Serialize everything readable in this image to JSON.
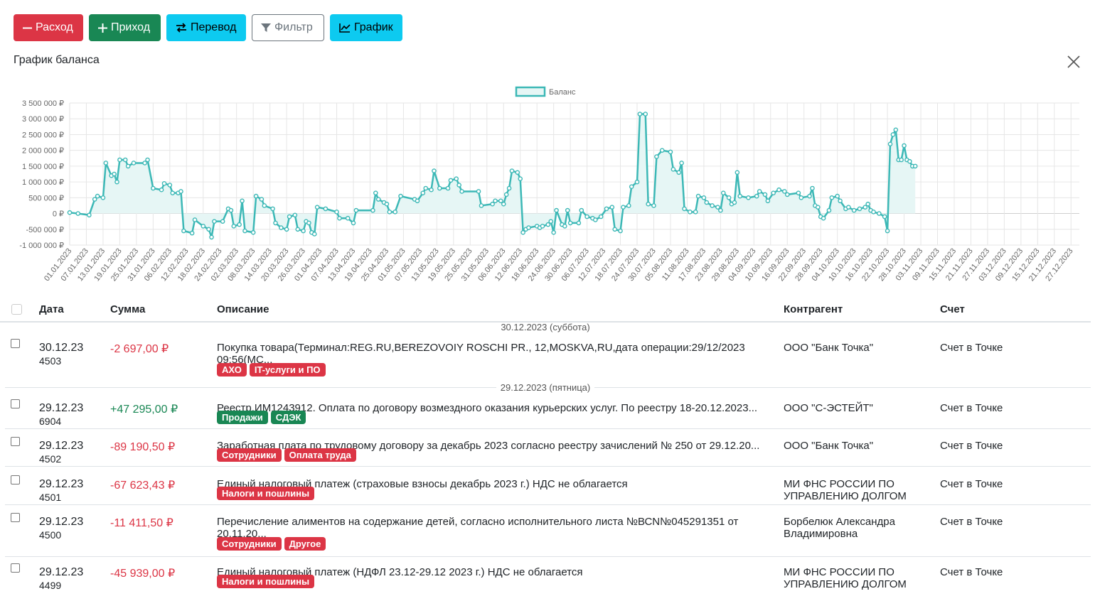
{
  "toolbar": {
    "expense_label": "Расход",
    "income_label": "Приход",
    "transfer_label": "Перевод",
    "filter_label": "Фильтр",
    "chart_label": "График"
  },
  "chart_panel": {
    "title": "График баланса"
  },
  "colors": {
    "danger": "#dc3545",
    "success": "#198754",
    "info": "#0dcaf0",
    "line": "#3cb8b6",
    "fill": "#e6f6f5"
  },
  "chart_data": {
    "type": "area",
    "legend": [
      "Баланс"
    ],
    "legend_position": "top-center",
    "y_ticks": [
      "3 500 000 ₽",
      "3 000 000 ₽",
      "2 500 000 ₽",
      "2 000 000 ₽",
      "1 500 000 ₽",
      "1 000 000 ₽",
      "500 000 ₽",
      "0 ₽",
      "-500 000 ₽",
      "-1 000 000 ₽"
    ],
    "ylim": [
      -1000000,
      3500000
    ],
    "x_labels": [
      "01.01.2023",
      "07.01.2023",
      "13.01.2023",
      "19.01.2023",
      "25.01.2023",
      "31.01.2023",
      "06.02.2023",
      "12.02.2023",
      "18.02.2023",
      "24.02.2023",
      "02.03.2023",
      "08.03.2023",
      "14.03.2023",
      "20.03.2023",
      "26.03.2023",
      "01.04.2023",
      "07.04.2023",
      "13.04.2023",
      "19.04.2023",
      "25.04.2023",
      "01.05.2023",
      "07.05.2023",
      "13.05.2023",
      "19.05.2023",
      "25.05.2023",
      "31.05.2023",
      "06.06.2023",
      "12.06.2023",
      "18.06.2023",
      "24.06.2023",
      "30.06.2023",
      "06.07.2023",
      "12.07.2023",
      "18.07.2023",
      "24.07.2023",
      "30.07.2023",
      "05.08.2023",
      "11.08.2023",
      "17.08.2023",
      "23.08.2023",
      "29.08.2023",
      "04.09.2023",
      "10.09.2023",
      "16.09.2023",
      "22.09.2023",
      "28.09.2023",
      "04.10.2023",
      "10.10.2023",
      "16.10.2023",
      "22.10.2023",
      "28.10.2023",
      "03.11.2023",
      "09.11.2023",
      "15.11.2023",
      "21.11.2023",
      "27.11.2023",
      "03.12.2023",
      "09.12.2023",
      "15.12.2023",
      "21.12.2023",
      "27.12.2023"
    ],
    "x_range": [
      "01.01.2023",
      "30.12.2023"
    ],
    "grid": true,
    "points": [
      [
        "01.01.2023",
        30000
      ],
      [
        "04.01.2023",
        0
      ],
      [
        "08.01.2023",
        -50000
      ],
      [
        "10.01.2023",
        450000
      ],
      [
        "11.01.2023",
        550000
      ],
      [
        "13.01.2023",
        500000
      ],
      [
        "14.01.2023",
        1600000
      ],
      [
        "16.01.2023",
        1200000
      ],
      [
        "17.01.2023",
        1250000
      ],
      [
        "18.01.2023",
        1000000
      ],
      [
        "19.01.2023",
        1700000
      ],
      [
        "21.01.2023",
        1700000
      ],
      [
        "22.01.2023",
        1500000
      ],
      [
        "24.01.2023",
        1600000
      ],
      [
        "28.01.2023",
        1600000
      ],
      [
        "29.01.2023",
        1700000
      ],
      [
        "31.01.2023",
        800000
      ],
      [
        "03.02.2023",
        750000
      ],
      [
        "04.02.2023",
        950000
      ],
      [
        "06.02.2023",
        900000
      ],
      [
        "07.02.2023",
        650000
      ],
      [
        "09.02.2023",
        650000
      ],
      [
        "10.02.2023",
        700000
      ],
      [
        "11.02.2023",
        -550000
      ],
      [
        "14.02.2023",
        -620000
      ],
      [
        "15.02.2023",
        -200000
      ],
      [
        "18.02.2023",
        -400000
      ],
      [
        "20.02.2023",
        -500000
      ],
      [
        "21.02.2023",
        -750000
      ],
      [
        "22.02.2023",
        -250000
      ],
      [
        "25.02.2023",
        -250000
      ],
      [
        "27.02.2023",
        150000
      ],
      [
        "28.02.2023",
        100000
      ],
      [
        "01.03.2023",
        -400000
      ],
      [
        "03.03.2023",
        -350000
      ],
      [
        "04.03.2023",
        400000
      ],
      [
        "05.03.2023",
        -550000
      ],
      [
        "08.03.2023",
        -600000
      ],
      [
        "09.03.2023",
        550000
      ],
      [
        "11.03.2023",
        450000
      ],
      [
        "12.03.2023",
        250000
      ],
      [
        "15.03.2023",
        150000
      ],
      [
        "16.03.2023",
        -300000
      ],
      [
        "18.03.2023",
        -450000
      ],
      [
        "20.03.2023",
        -500000
      ],
      [
        "21.03.2023",
        -100000
      ],
      [
        "23.03.2023",
        -50000
      ],
      [
        "24.03.2023",
        -500000
      ],
      [
        "26.03.2023",
        -550000
      ],
      [
        "27.03.2023",
        -250000
      ],
      [
        "28.03.2023",
        -300000
      ],
      [
        "29.03.2023",
        -600000
      ],
      [
        "30.03.2023",
        -650000
      ],
      [
        "31.03.2023",
        200000
      ],
      [
        "03.04.2023",
        150000
      ],
      [
        "07.04.2023",
        50000
      ],
      [
        "08.04.2023",
        -150000
      ],
      [
        "11.04.2023",
        -150000
      ],
      [
        "13.04.2023",
        -300000
      ],
      [
        "14.04.2023",
        100000
      ],
      [
        "20.04.2023",
        100000
      ],
      [
        "21.04.2023",
        650000
      ],
      [
        "22.04.2023",
        450000
      ],
      [
        "24.04.2023",
        350000
      ],
      [
        "25.04.2023",
        300000
      ],
      [
        "26.04.2023",
        50000
      ],
      [
        "28.04.2023",
        50000
      ],
      [
        "30.04.2023",
        550000
      ],
      [
        "05.05.2023",
        450000
      ],
      [
        "06.05.2023",
        400000
      ],
      [
        "08.05.2023",
        650000
      ],
      [
        "09.05.2023",
        800000
      ],
      [
        "11.05.2023",
        750000
      ],
      [
        "12.05.2023",
        1350000
      ],
      [
        "14.05.2023",
        800000
      ],
      [
        "17.05.2023",
        800000
      ],
      [
        "18.05.2023",
        1050000
      ],
      [
        "20.05.2023",
        1100000
      ],
      [
        "21.05.2023",
        900000
      ],
      [
        "22.05.2023",
        700000
      ],
      [
        "28.05.2023",
        700000
      ],
      [
        "29.05.2023",
        250000
      ],
      [
        "02.06.2023",
        300000
      ],
      [
        "03.06.2023",
        400000
      ],
      [
        "05.06.2023",
        400000
      ],
      [
        "06.06.2023",
        300000
      ],
      [
        "07.06.2023",
        600000
      ],
      [
        "08.06.2023",
        800000
      ],
      [
        "09.06.2023",
        1350000
      ],
      [
        "11.06.2023",
        1300000
      ],
      [
        "12.06.2023",
        1100000
      ],
      [
        "13.06.2023",
        -600000
      ],
      [
        "14.06.2023",
        -500000
      ],
      [
        "15.06.2023",
        -450000
      ],
      [
        "18.06.2023",
        -400000
      ],
      [
        "19.06.2023",
        -450000
      ],
      [
        "20.06.2023",
        -400000
      ],
      [
        "22.06.2023",
        -350000
      ],
      [
        "23.06.2023",
        -250000
      ],
      [
        "24.06.2023",
        -600000
      ],
      [
        "25.06.2023",
        100000
      ],
      [
        "27.06.2023",
        -350000
      ],
      [
        "28.06.2023",
        -400000
      ],
      [
        "29.06.2023",
        100000
      ],
      [
        "30.06.2023",
        -300000
      ],
      [
        "03.07.2023",
        -300000
      ],
      [
        "04.07.2023",
        100000
      ],
      [
        "06.07.2023",
        -100000
      ],
      [
        "08.07.2023",
        -150000
      ],
      [
        "09.07.2023",
        -200000
      ],
      [
        "11.07.2023",
        -100000
      ],
      [
        "13.07.2023",
        150000
      ],
      [
        "15.07.2023",
        200000
      ],
      [
        "16.07.2023",
        -500000
      ],
      [
        "18.07.2023",
        -550000
      ],
      [
        "19.07.2023",
        200000
      ],
      [
        "21.07.2023",
        250000
      ],
      [
        "22.07.2023",
        850000
      ],
      [
        "24.07.2023",
        1000000
      ],
      [
        "25.07.2023",
        3150000
      ],
      [
        "27.07.2023",
        3150000
      ],
      [
        "28.07.2023",
        300000
      ],
      [
        "30.07.2023",
        250000
      ],
      [
        "31.07.2023",
        1800000
      ],
      [
        "02.08.2023",
        2000000
      ],
      [
        "05.08.2023",
        1950000
      ],
      [
        "06.08.2023",
        1400000
      ],
      [
        "08.08.2023",
        1300000
      ],
      [
        "09.08.2023",
        1600000
      ],
      [
        "10.08.2023",
        150000
      ],
      [
        "12.08.2023",
        50000
      ],
      [
        "14.08.2023",
        50000
      ],
      [
        "15.08.2023",
        550000
      ],
      [
        "17.08.2023",
        500000
      ],
      [
        "18.08.2023",
        350000
      ],
      [
        "20.08.2023",
        250000
      ],
      [
        "22.08.2023",
        200000
      ],
      [
        "23.08.2023",
        100000
      ],
      [
        "24.08.2023",
        650000
      ],
      [
        "26.08.2023",
        500000
      ],
      [
        "27.08.2023",
        300000
      ],
      [
        "28.08.2023",
        350000
      ],
      [
        "29.08.2023",
        1300000
      ],
      [
        "30.08.2023",
        550000
      ],
      [
        "02.09.2023",
        500000
      ],
      [
        "05.09.2023",
        550000
      ],
      [
        "06.09.2023",
        700000
      ],
      [
        "08.09.2023",
        600000
      ],
      [
        "09.09.2023",
        400000
      ],
      [
        "11.09.2023",
        650000
      ],
      [
        "13.09.2023",
        750000
      ],
      [
        "15.09.2023",
        700000
      ],
      [
        "16.09.2023",
        600000
      ],
      [
        "20.09.2023",
        650000
      ],
      [
        "21.09.2023",
        500000
      ],
      [
        "24.09.2023",
        550000
      ],
      [
        "25.09.2023",
        800000
      ],
      [
        "26.09.2023",
        250000
      ],
      [
        "27.09.2023",
        200000
      ],
      [
        "28.09.2023",
        -100000
      ],
      [
        "29.09.2023",
        -150000
      ],
      [
        "01.10.2023",
        100000
      ],
      [
        "02.10.2023",
        500000
      ],
      [
        "04.10.2023",
        550000
      ],
      [
        "05.10.2023",
        400000
      ],
      [
        "07.10.2023",
        150000
      ],
      [
        "08.10.2023",
        200000
      ],
      [
        "10.10.2023",
        100000
      ],
      [
        "12.10.2023",
        150000
      ],
      [
        "14.10.2023",
        200000
      ],
      [
        "15.10.2023",
        300000
      ],
      [
        "16.10.2023",
        100000
      ],
      [
        "17.10.2023",
        50000
      ],
      [
        "19.10.2023",
        0
      ],
      [
        "21.10.2023",
        -100000
      ],
      [
        "22.10.2023",
        -550000
      ],
      [
        "23.10.2023",
        2200000
      ],
      [
        "24.10.2023",
        2500000
      ],
      [
        "25.10.2023",
        2650000
      ],
      [
        "26.10.2023",
        1700000
      ],
      [
        "27.10.2023",
        1700000
      ],
      [
        "28.10.2023",
        2150000
      ],
      [
        "29.10.2023",
        1700000
      ],
      [
        "30.10.2023",
        1650000
      ],
      [
        "31.10.2023",
        1500000
      ],
      [
        "01.11.2023",
        1500000
      ]
    ]
  },
  "table": {
    "columns": [
      "Дата",
      "Сумма",
      "Описание",
      "Контрагент",
      "Счет"
    ],
    "groups": [
      {
        "label": "30.12.2023 (суббота)",
        "rows": [
          {
            "date": "30.12.23",
            "num": "4503",
            "amount": "-2 697,00 ₽",
            "type": "neg",
            "desc_l1": "Покупка товара(Терминал:REG.RU,BEREZOVOIY ROSCHI PR., 12,MOSKVA,RU,дата операции:29/12/2023",
            "desc_l2": "09:56(МС...",
            "tags": [
              "АХО",
              "IT-услуги и ПО"
            ],
            "cp_l1": "ООО \"Банк Точка\"",
            "cp_l2": "",
            "account": "Счет в Точке"
          }
        ]
      },
      {
        "label": "29.12.2023 (пятница)",
        "rows": [
          {
            "date": "29.12.23",
            "num": "6904",
            "amount": "+47 295,00 ₽",
            "type": "pos",
            "desc_l1": "Реестр.ИМ1243912. Оплата по договору возмездного оказания курьерских услуг. По реестру 18-20.12.2023...",
            "desc_l2": "",
            "tags": [
              "Продажи",
              "СДЭК"
            ],
            "cp_l1": "ООО \"С-ЭСТЕЙТ\"",
            "cp_l2": "",
            "account": "Счет в Точке"
          },
          {
            "date": "29.12.23",
            "num": "4502",
            "amount": "-89 190,50 ₽",
            "type": "neg",
            "desc_l1": "Заработная плата по трудовому договору за декабрь 2023 согласно реестру зачислений № 250 от 29.12.20...",
            "desc_l2": "",
            "tags": [
              "Сотрудники",
              "Оплата труда"
            ],
            "cp_l1": "ООО \"Банк Точка\"",
            "cp_l2": "",
            "account": "Счет в Точке"
          },
          {
            "date": "29.12.23",
            "num": "4501",
            "amount": "-67 623,43 ₽",
            "type": "neg",
            "desc_l1": "Единый налоговый платеж (страховые взносы декабрь 2023 г.) НДС не облагается",
            "desc_l2": "",
            "tags": [
              "Налоги и пошлины"
            ],
            "cp_l1": "МИ ФНС РОССИИ ПО",
            "cp_l2": "УПРАВЛЕНИЮ ДОЛГОМ",
            "account": "Счет в Точке"
          },
          {
            "date": "29.12.23",
            "num": "4500",
            "amount": "-11 411,50 ₽",
            "type": "neg",
            "desc_l1": "Перечисление алиментов на содержание детей, согласно исполнительного листа №ВСN№045291351 от",
            "desc_l2": "20.11.20...",
            "tags": [
              "Сотрудники",
              "Другое"
            ],
            "cp_l1": "Борбелюк Александра",
            "cp_l2": "Владимировна",
            "account": "Счет в Точке"
          },
          {
            "date": "29.12.23",
            "num": "4499",
            "amount": "-45 939,00 ₽",
            "type": "neg",
            "desc_l1": "Единый налоговый платеж (НДФЛ 23.12-29.12 2023 г.) НДС не облагается",
            "desc_l2": "",
            "tags": [
              "Налоги и пошлины"
            ],
            "cp_l1": "МИ ФНС РОССИИ ПО",
            "cp_l2": "УПРАВЛЕНИЮ ДОЛГОМ",
            "account": "Счет в Точке"
          }
        ]
      }
    ]
  }
}
